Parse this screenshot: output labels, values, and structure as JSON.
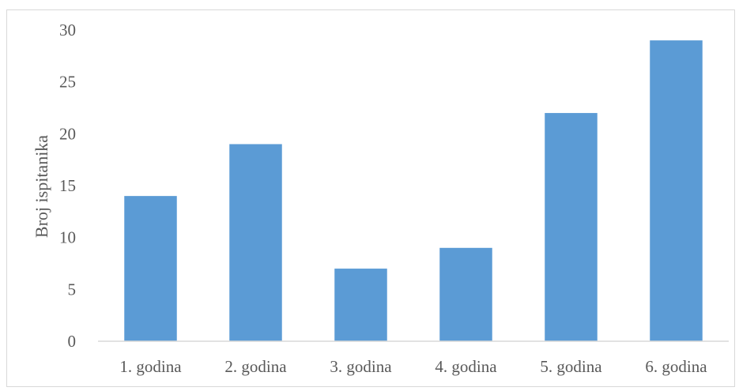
{
  "chart_data": {
    "type": "bar",
    "title": "",
    "xlabel": "",
    "ylabel": "Broj ispitanika",
    "categories": [
      "1. godina",
      "2. godina",
      "3. godina",
      "4. godina",
      "5. godina",
      "6. godina"
    ],
    "values": [
      14,
      19,
      7,
      9,
      22,
      29
    ],
    "ylim": [
      0,
      30
    ],
    "yticks": [
      0,
      5,
      10,
      15,
      20,
      25,
      30
    ],
    "grid": false,
    "legend": "none",
    "bar_color": "#5b9bd5",
    "axis_color": "#d9d9d9"
  }
}
